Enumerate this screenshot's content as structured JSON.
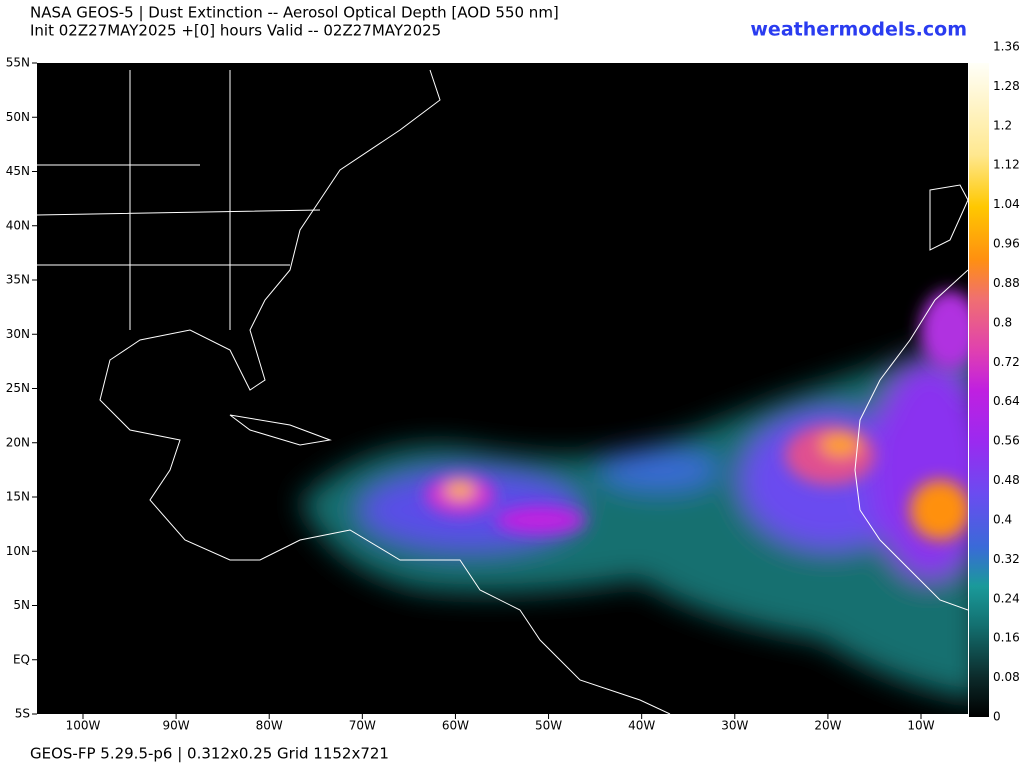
{
  "header": {
    "title": "NASA GEOS-5 | Dust Extinction -- Aerosol Optical Depth [AOD 550 nm]",
    "subtitle": "Init 02Z27MAY2025 +[0] hours Valid -- 02Z27MAY2025",
    "brand": "weathermodels.com"
  },
  "map": {
    "lat_labels": [
      "55N",
      "50N",
      "45N",
      "40N",
      "35N",
      "30N",
      "25N",
      "20N",
      "15N",
      "10N",
      "5N",
      "EQ",
      "5S"
    ],
    "lon_labels": [
      "100W",
      "90W",
      "80W",
      "70W",
      "60W",
      "50W",
      "40W",
      "30W",
      "20W",
      "10W"
    ]
  },
  "colorbar": {
    "ticks": [
      0,
      0.08,
      0.16,
      0.24,
      0.32,
      0.4,
      0.48,
      0.56,
      0.64,
      0.72,
      0.8,
      0.88,
      0.96,
      1.04,
      1.12,
      1.2,
      1.28,
      1.36
    ]
  },
  "footer": {
    "text": "GEOS-FP 5.29.5-p6 | 0.312x0.25 Grid 1152x721"
  }
}
